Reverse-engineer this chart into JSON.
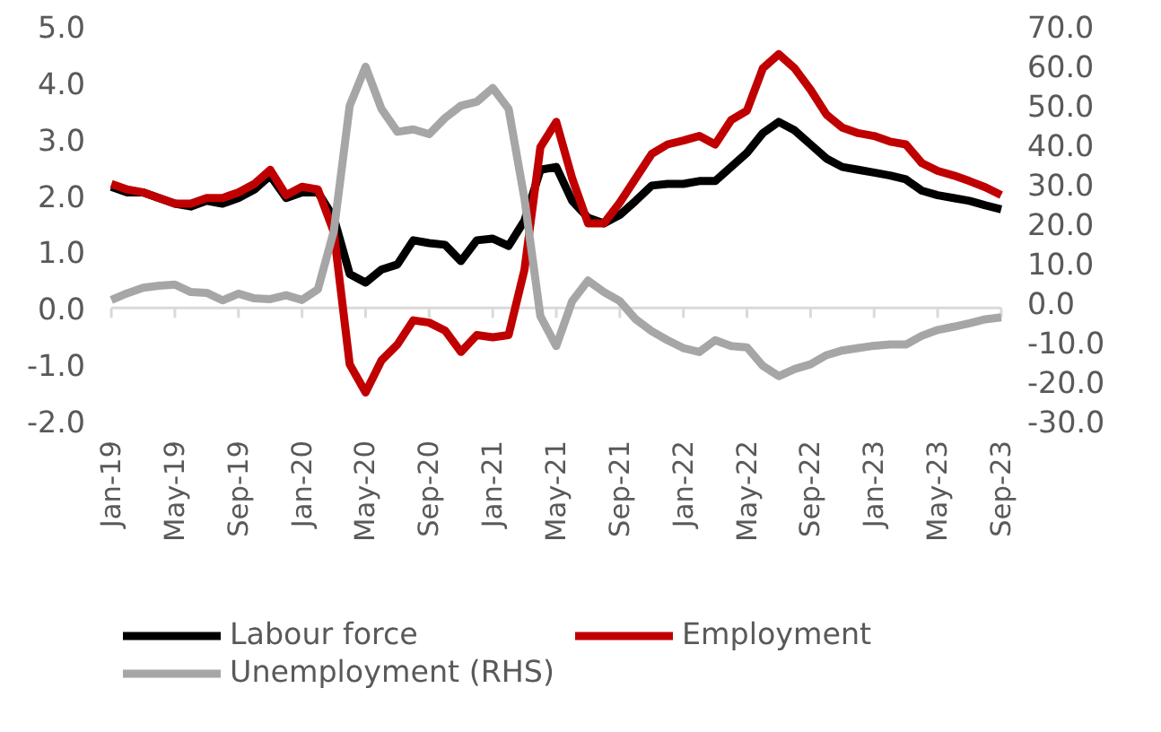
{
  "chart_data": {
    "type": "line",
    "categories": [
      "Jan-19",
      null,
      null,
      null,
      "May-19",
      null,
      null,
      null,
      "Sep-19",
      null,
      null,
      null,
      "Jan-20",
      null,
      null,
      null,
      "May-20",
      null,
      null,
      null,
      "Sep-20",
      null,
      null,
      null,
      "Jan-21",
      null,
      null,
      null,
      "May-21",
      null,
      null,
      null,
      "Sep-21",
      null,
      null,
      null,
      "Jan-22",
      null,
      null,
      null,
      "May-22",
      null,
      null,
      null,
      "Sep-22",
      null,
      null,
      null,
      "Jan-23",
      null,
      null,
      null,
      "May-23",
      null,
      null,
      null,
      "Sep-23"
    ],
    "series": [
      {
        "name": "Labour force",
        "color": "#000000",
        "values": [
          2.15,
          2.05,
          2.05,
          1.95,
          1.85,
          1.8,
          1.9,
          1.85,
          1.95,
          2.1,
          2.35,
          1.95,
          2.05,
          2.05,
          1.6,
          0.6,
          0.45,
          0.68,
          0.77,
          1.2,
          1.15,
          1.12,
          0.83,
          1.2,
          1.23,
          1.1,
          1.55,
          2.45,
          2.5,
          1.9,
          1.6,
          1.5,
          1.65,
          1.9,
          2.17,
          2.2,
          2.2,
          2.25,
          2.25,
          2.5,
          2.75,
          3.1,
          3.3,
          3.15,
          2.9,
          2.65,
          2.5,
          2.45,
          2.4,
          2.35,
          2.28,
          2.08,
          2.0,
          1.95,
          1.9,
          1.82,
          1.75
        ]
      },
      {
        "name": "Employment",
        "color": "#c00000",
        "values": [
          2.2,
          2.1,
          2.05,
          1.95,
          1.85,
          1.85,
          1.95,
          1.95,
          2.05,
          2.2,
          2.45,
          2.0,
          2.15,
          2.1,
          1.35,
          -1.0,
          -1.5,
          -0.93,
          -0.65,
          -0.22,
          -0.26,
          -0.4,
          -0.78,
          -0.48,
          -0.52,
          -0.48,
          0.68,
          2.85,
          3.3,
          2.3,
          1.5,
          1.5,
          1.87,
          2.3,
          2.73,
          2.9,
          2.97,
          3.05,
          2.9,
          3.33,
          3.5,
          4.25,
          4.5,
          4.25,
          3.87,
          3.43,
          3.2,
          3.1,
          3.05,
          2.95,
          2.9,
          2.57,
          2.43,
          2.35,
          2.25,
          2.14,
          2.0
        ]
      },
      {
        "name": "Unemployment (RHS)",
        "color": "#a6a6a6",
        "axis": "y2",
        "values": [
          0.6,
          2.3,
          3.7,
          4.2,
          4.5,
          2.6,
          2.4,
          0.5,
          2.2,
          1.0,
          0.8,
          1.8,
          0.6,
          3.3,
          18.0,
          49.8,
          59.7,
          49.0,
          43.2,
          43.8,
          42.6,
          46.7,
          49.8,
          50.8,
          54.3,
          49.0,
          26.2,
          -3.5,
          -11.1,
          0.3,
          5.5,
          2.6,
          0.3,
          -4.3,
          -7.3,
          -9.6,
          -11.6,
          -12.6,
          -9.6,
          -11.1,
          -11.4,
          -16.1,
          -18.7,
          -16.9,
          -15.7,
          -13.4,
          -12.2,
          -11.6,
          -11.0,
          -10.7,
          -10.7,
          -8.5,
          -7.0,
          -6.2,
          -5.3,
          -4.3,
          -3.8
        ]
      }
    ],
    "ylim": [
      -2,
      5
    ],
    "yticks": [
      {
        "value": -2,
        "label": "-2.0"
      },
      {
        "value": -1,
        "label": "-1.0"
      },
      {
        "value": 0,
        "label": "0.0"
      },
      {
        "value": 1,
        "label": "1.0"
      },
      {
        "value": 2,
        "label": "2.0"
      },
      {
        "value": 3,
        "label": "3.0"
      },
      {
        "value": 4,
        "label": "4.0"
      },
      {
        "value": 5,
        "label": "5.0"
      }
    ],
    "y2lim": [
      -30,
      70
    ],
    "y2ticks": [
      {
        "value": -30,
        "label": "-30.0"
      },
      {
        "value": -20,
        "label": "-20.0"
      },
      {
        "value": -10,
        "label": "-10.0"
      },
      {
        "value": 0,
        "label": "0.0"
      },
      {
        "value": 10,
        "label": "10.0"
      },
      {
        "value": 20,
        "label": "20.0"
      },
      {
        "value": 30,
        "label": "30.0"
      },
      {
        "value": 40,
        "label": "40.0"
      },
      {
        "value": 50,
        "label": "50.0"
      },
      {
        "value": 60,
        "label": "60.0"
      },
      {
        "value": 70,
        "label": "70.0"
      }
    ],
    "grid": false,
    "ref_lines": [
      {
        "axis": "y",
        "value": 0,
        "color": "#d9d9d9"
      }
    ],
    "legend": "bottom",
    "line_style": "solid",
    "marker": "none"
  }
}
